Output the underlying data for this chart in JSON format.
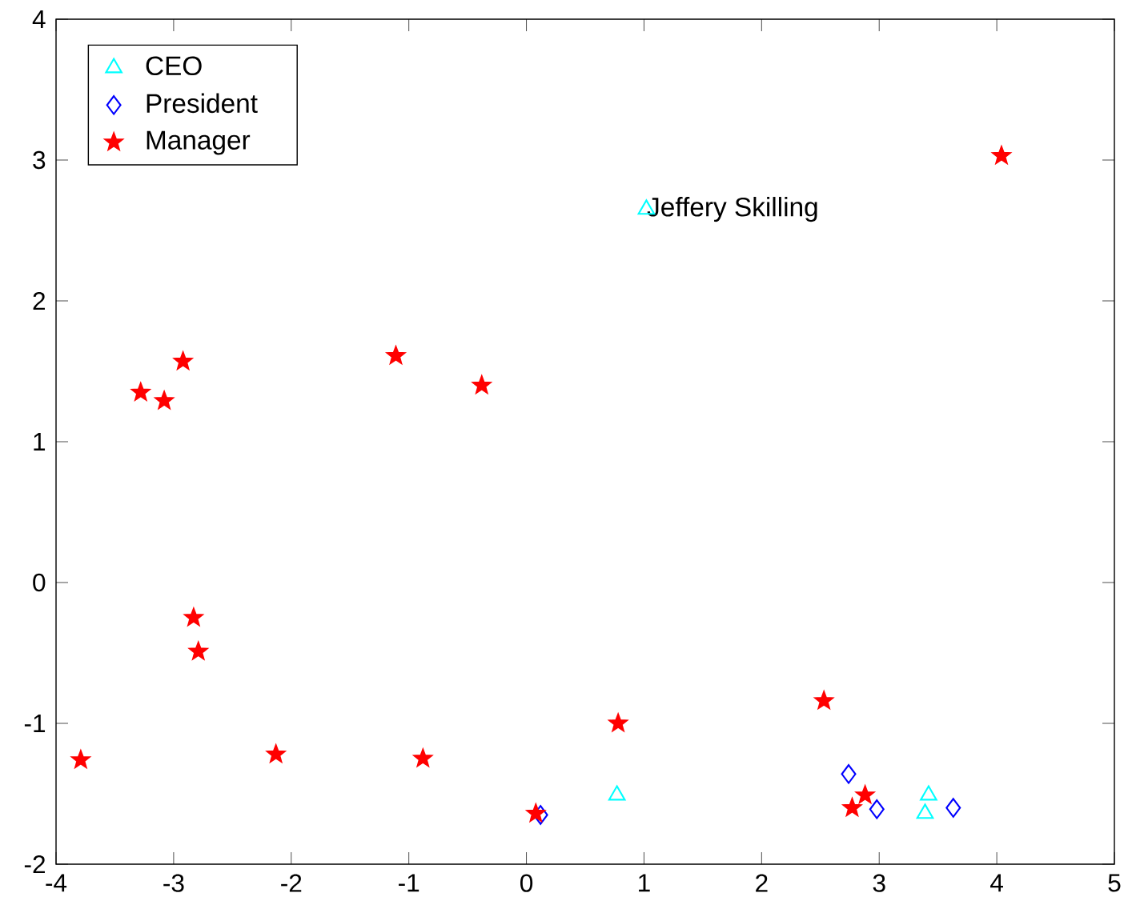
{
  "chart_data": {
    "type": "scatter",
    "series": [
      {
        "name": "CEO",
        "color": "#00ffff",
        "marker": "triangle",
        "x": [
          1.02,
          0.77,
          3.42,
          3.39
        ],
        "values": [
          2.65,
          -1.51,
          -1.51,
          -1.64
        ]
      },
      {
        "name": "President",
        "color": "#0000ff",
        "marker": "diamond",
        "x": [
          0.12,
          2.74,
          2.98,
          3.63
        ],
        "values": [
          -1.65,
          -1.36,
          -1.61,
          -1.6
        ]
      },
      {
        "name": "Manager",
        "color": "#ff0000",
        "marker": "star",
        "x": [
          4.04,
          -3.28,
          -3.08,
          -2.92,
          -1.11,
          -0.38,
          -2.83,
          -2.79,
          -3.79,
          -2.13,
          -0.88,
          0.78,
          2.53,
          0.08,
          2.77,
          2.88
        ],
        "values": [
          3.03,
          1.35,
          1.29,
          1.57,
          1.61,
          1.4,
          -0.25,
          -0.49,
          -1.26,
          -1.22,
          -1.25,
          -1.0,
          -0.84,
          -1.64,
          -1.6,
          -1.51
        ]
      }
    ],
    "annotations": [
      {
        "text": "Jeffery Skilling",
        "x": 1.02,
        "y": 2.65
      }
    ],
    "xlim": [
      -4,
      5
    ],
    "ylim": [
      -2,
      4
    ],
    "xticks": [
      -4,
      -3,
      -2,
      -1,
      0,
      1,
      2,
      3,
      4,
      5
    ],
    "yticks": [
      -2,
      -1,
      0,
      1,
      2,
      3,
      4
    ],
    "legend": "top left",
    "grid": false
  }
}
